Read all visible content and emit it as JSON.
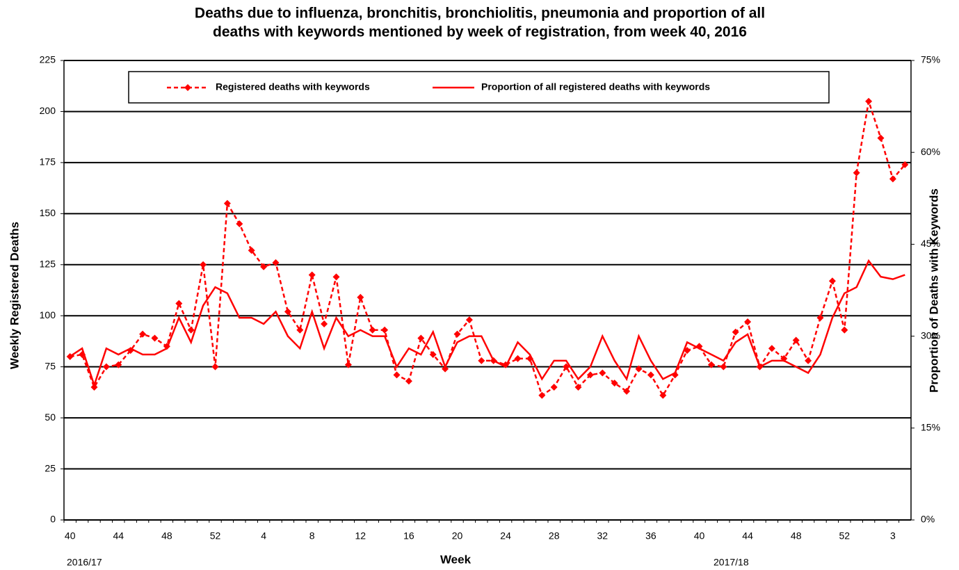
{
  "chart_data": {
    "type": "line",
    "title": [
      "Deaths due to influenza, bronchitis, bronchiolitis, pneumonia and proportion of all",
      "deaths with keywords mentioned by week of registration, from week 40, 2016"
    ],
    "xlabel": "Week",
    "ylabel": "Weekly Registered Deaths",
    "y2label": "Proportion of Deaths with Keywords",
    "annotations": [
      "2016/17",
      "2017/18"
    ],
    "categories": [
      "40",
      null,
      null,
      null,
      "44",
      null,
      null,
      null,
      "48",
      null,
      null,
      null,
      "52",
      null,
      null,
      null,
      "4",
      null,
      null,
      null,
      "8",
      null,
      null,
      null,
      "12",
      null,
      null,
      null,
      "16",
      null,
      null,
      null,
      "20",
      null,
      null,
      null,
      "24",
      null,
      null,
      null,
      "28",
      null,
      null,
      null,
      "32",
      null,
      null,
      null,
      "36",
      null,
      null,
      null,
      "40",
      null,
      null,
      null,
      "44",
      null,
      null,
      null,
      "48",
      null,
      null,
      null,
      "52",
      null,
      null,
      null,
      "3",
      null
    ],
    "series": [
      {
        "name": "Registered deaths with keywords",
        "color": "#ff0000",
        "line_style": "dashed",
        "marker": "diamond",
        "values": [
          80,
          81,
          65,
          75,
          76,
          83,
          91,
          89,
          85,
          106,
          93,
          125,
          75,
          155,
          145,
          132,
          124,
          126,
          102,
          93,
          120,
          96,
          119,
          76,
          109,
          93,
          93,
          71,
          68,
          89,
          81,
          74,
          91,
          98,
          78,
          78,
          76,
          79,
          79,
          61,
          65,
          75,
          65,
          71,
          72,
          67,
          63,
          74,
          71,
          61,
          71,
          83,
          85,
          76,
          75,
          92,
          97,
          75,
          84,
          79,
          88,
          78,
          99,
          117,
          93,
          170,
          205,
          187,
          167,
          174
        ]
      },
      {
        "name": "Proportion of all registered deaths with keywords",
        "color": "#ff0000",
        "line_style": "solid",
        "axis": "y2",
        "values": [
          26.7,
          28,
          22,
          28,
          27,
          28,
          27,
          27,
          28,
          33,
          29,
          35,
          38,
          37,
          33,
          33,
          32,
          34,
          30,
          28,
          34,
          28,
          33,
          30,
          31,
          30,
          30,
          25,
          28,
          27,
          30.7,
          25,
          29,
          30,
          30,
          26,
          25,
          29,
          27,
          23,
          26,
          26,
          23,
          25,
          30,
          26,
          23,
          30,
          26,
          23,
          24,
          29,
          28,
          27,
          26,
          29,
          30.3,
          25,
          26,
          26,
          25,
          24,
          27,
          33,
          37,
          38,
          42.3,
          39.7,
          39.3,
          40
        ]
      }
    ],
    "ylim": [
      0,
      225
    ],
    "yticks": [
      0,
      25,
      50,
      75,
      100,
      125,
      150,
      175,
      200,
      225
    ],
    "y2lim": [
      0,
      75
    ],
    "y2ticks": [
      {
        "value": 0,
        "label": "0%"
      },
      {
        "value": 15,
        "label": "15%"
      },
      {
        "value": 30,
        "label": "30%"
      },
      {
        "value": 45,
        "label": "45%"
      },
      {
        "value": 60,
        "label": "60%"
      },
      {
        "value": 75,
        "label": "75%"
      }
    ],
    "grid": true,
    "legend": "top"
  }
}
